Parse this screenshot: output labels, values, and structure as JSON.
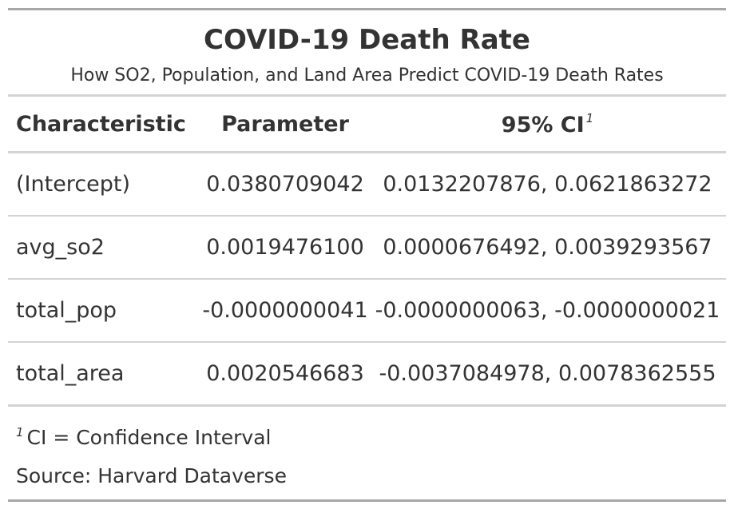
{
  "table": {
    "title": "COVID-19 Death Rate",
    "subtitle": "How SO2, Population, and Land Area Predict COVID-19 Death Rates",
    "headers": {
      "characteristic": "Characteristic",
      "parameter": "Parameter",
      "ci": "95% CI",
      "ci_footnote_mark": "1"
    },
    "rows": [
      {
        "characteristic": "(Intercept)",
        "parameter": "0.0380709042",
        "ci": "0.0132207876, 0.0621863272"
      },
      {
        "characteristic": "avg_so2",
        "parameter": "0.0019476100",
        "ci": "0.0000676492, 0.0039293567"
      },
      {
        "characteristic": "total_pop",
        "parameter": "-0.0000000041",
        "ci": "-0.0000000063, -0.0000000021"
      },
      {
        "characteristic": "total_area",
        "parameter": "0.0020546683",
        "ci": "-0.0037084978, 0.0078362555"
      }
    ],
    "footnote": {
      "mark": "1",
      "text": "CI = Confidence Interval"
    },
    "source": "Source: Harvard Dataverse"
  }
}
